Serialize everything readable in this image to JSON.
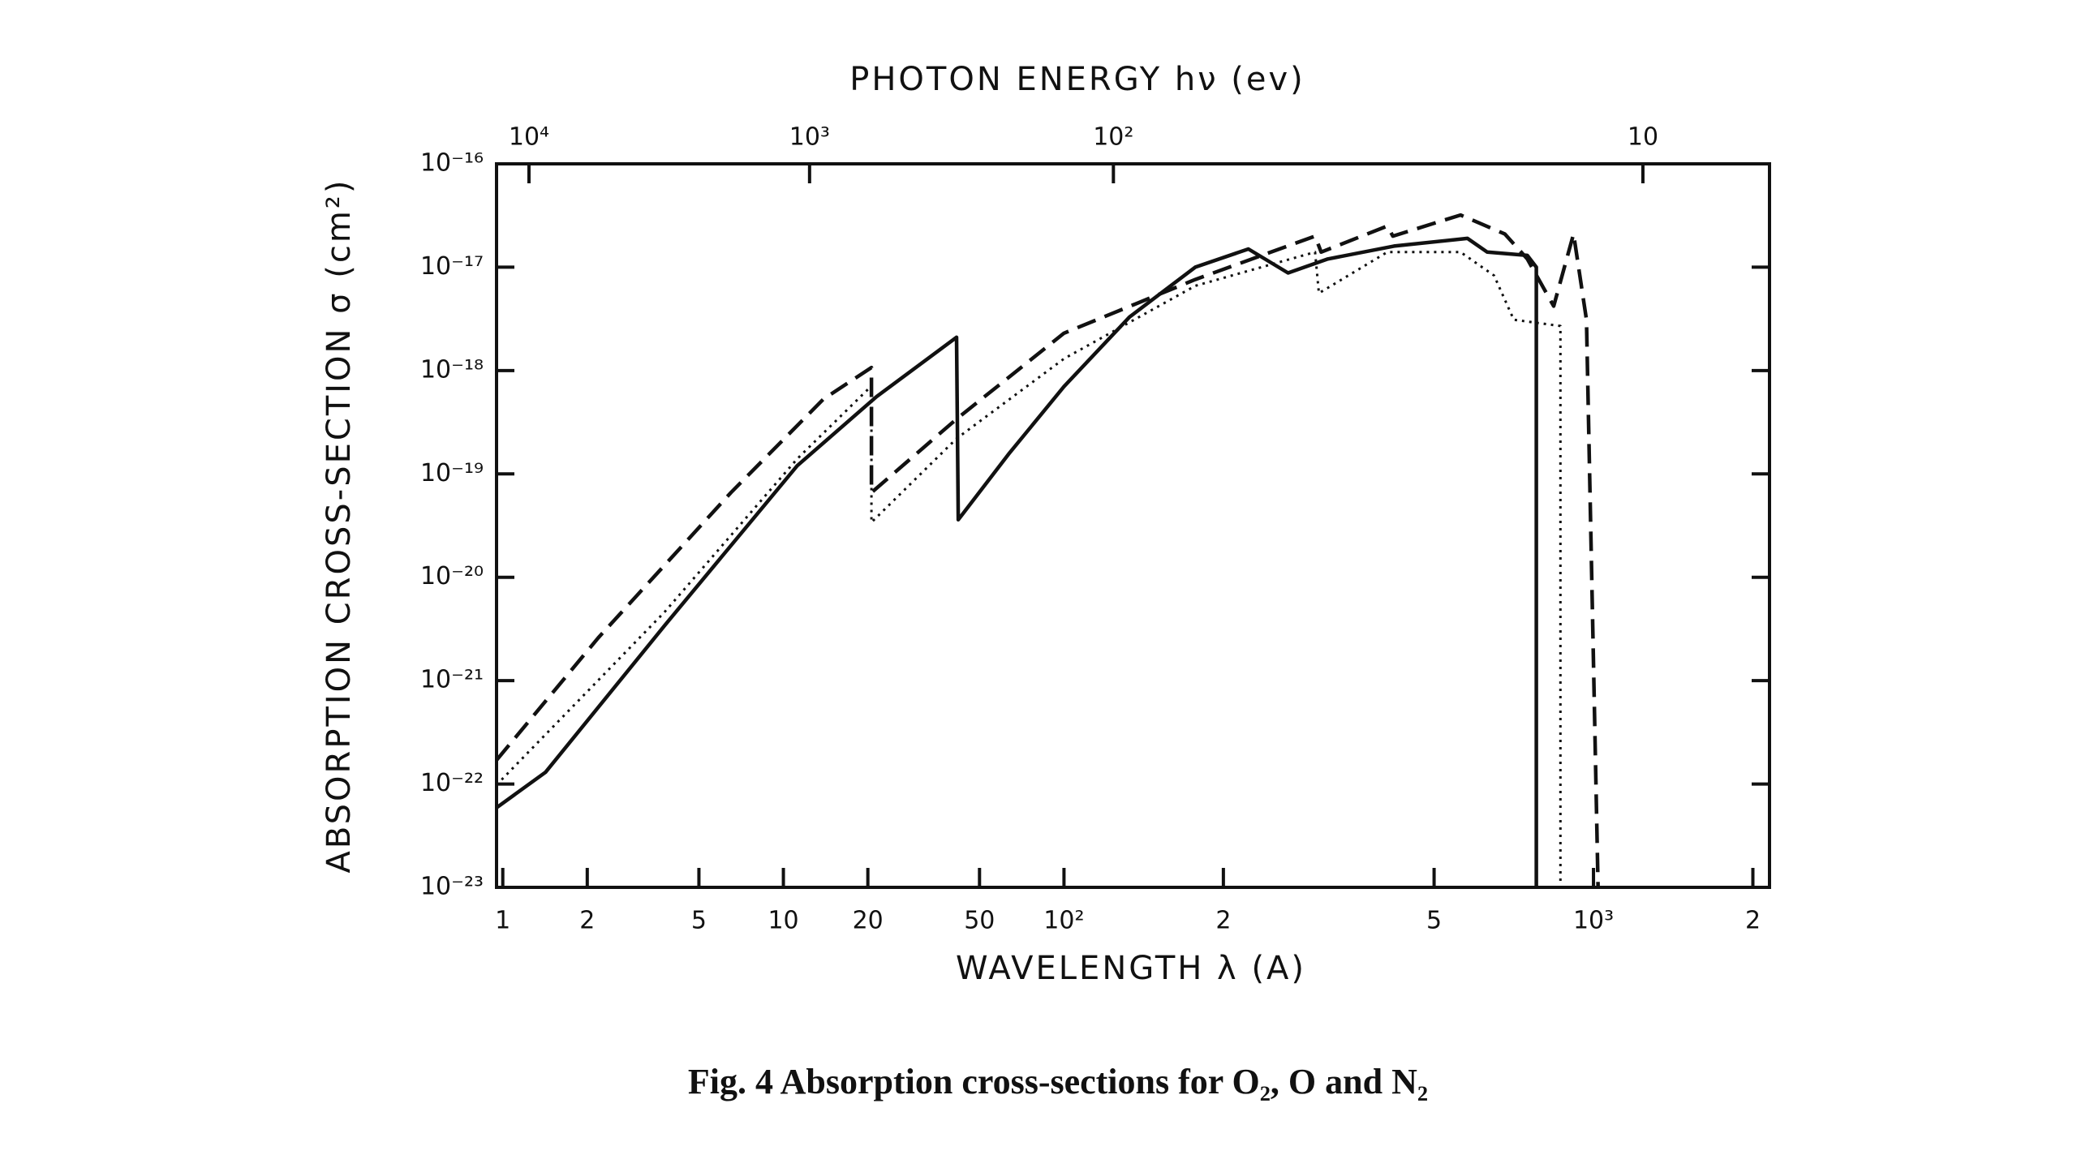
{
  "chart_data": {
    "type": "line",
    "title": "PHOTON ENERGY hν (ev)",
    "xlabel": "WAVELENGTH λ (A)",
    "ylabel": "ABSORPTION CROSS-SECTION σ (cm²)",
    "caption": "Fig. 4 Absorption cross-sections for O₂, O and N₂",
    "xscale": "log",
    "yscale": "log",
    "xlim": [
      0.95,
      2150
    ],
    "ylim": [
      1e-23,
      1e-16
    ],
    "xticks": [
      1,
      2,
      5,
      10,
      20,
      50,
      {
        "value": 100,
        "label": "10²"
      },
      {
        "value": 200,
        "label": "2"
      },
      {
        "value": 500,
        "label": "5"
      },
      {
        "value": 1000,
        "label": "10³"
      },
      {
        "value": 2000,
        "label": "2"
      }
    ],
    "x2lim": [
      13050,
      5.77
    ],
    "x2ticks": [
      {
        "value": 10000,
        "label": "10⁴"
      },
      {
        "value": 1000,
        "label": "10³"
      },
      {
        "value": 100,
        "label": "10²"
      },
      10
    ],
    "yticks": [
      {
        "value": 1e-16,
        "label": "10⁻¹⁶"
      },
      {
        "value": 1e-17,
        "label": "10⁻¹⁷"
      },
      {
        "value": 1e-18,
        "label": "10⁻¹⁸"
      },
      {
        "value": 1e-19,
        "label": "10⁻¹⁹"
      },
      {
        "value": 1e-20,
        "label": "10⁻²⁰"
      },
      {
        "value": 1e-21,
        "label": "10⁻²¹"
      },
      {
        "value": 1e-22,
        "label": "10⁻²²"
      },
      {
        "value": 1e-23,
        "label": "10⁻²³"
      }
    ],
    "series": [
      {
        "color": "#111111",
        "dash": "solid",
        "x": [
          0.95,
          1.42,
          3.77,
          11.2,
          21.5,
          41.4,
          42,
          64,
          100,
          133,
          177,
          223,
          265,
          315,
          420,
          578,
          630,
          750,
          780,
          780
        ],
        "values": [
          5.9e-23,
          1.3e-22,
          3.4e-21,
          1.2e-19,
          5.6e-19,
          2.1e-18,
          3.6e-20,
          1.6e-19,
          7e-19,
          3.3e-18,
          1e-17,
          1.5e-17,
          8.8e-18,
          1.2e-17,
          1.6e-17,
          1.9e-17,
          1.4e-17,
          1.3e-17,
          1e-17,
          1e-23
        ]
      },
      {
        "color": "#111111",
        "dash": "dashed",
        "x": [
          0.95,
          2.19,
          6.5,
          13.9,
          20.6,
          20.6,
          41.4,
          100,
          177,
          298,
          306,
          408,
          418,
          561,
          680,
          750,
          841,
          917,
          970,
          1020
        ],
        "values": [
          1.7e-22,
          2.6e-21,
          6.6e-20,
          5.3e-19,
          1.07e-18,
          6.6e-20,
          3.4e-19,
          2.3e-18,
          7.6e-18,
          2e-17,
          1.4e-17,
          2.5e-17,
          2e-17,
          3.2e-17,
          2.1e-17,
          1.2e-17,
          4.2e-18,
          2.1e-17,
          3.1e-18,
          1e-23
        ]
      },
      {
        "color": "#111111",
        "dash": "dotted",
        "x": [
          0.95,
          3.77,
          11.2,
          20.6,
          20.6,
          41.4,
          100,
          177,
          298,
          303,
          408,
          561,
          649,
          707,
          866,
          866
        ],
        "values": [
          9.8e-23,
          4.6e-21,
          1.4e-19,
          7.1e-19,
          3.4e-20,
          2.2e-19,
          1.3e-18,
          6.6e-18,
          1.4e-17,
          5.6e-18,
          1.4e-17,
          1.4e-17,
          8.3e-18,
          3.1e-18,
          2.7e-18,
          1e-23
        ]
      }
    ]
  }
}
